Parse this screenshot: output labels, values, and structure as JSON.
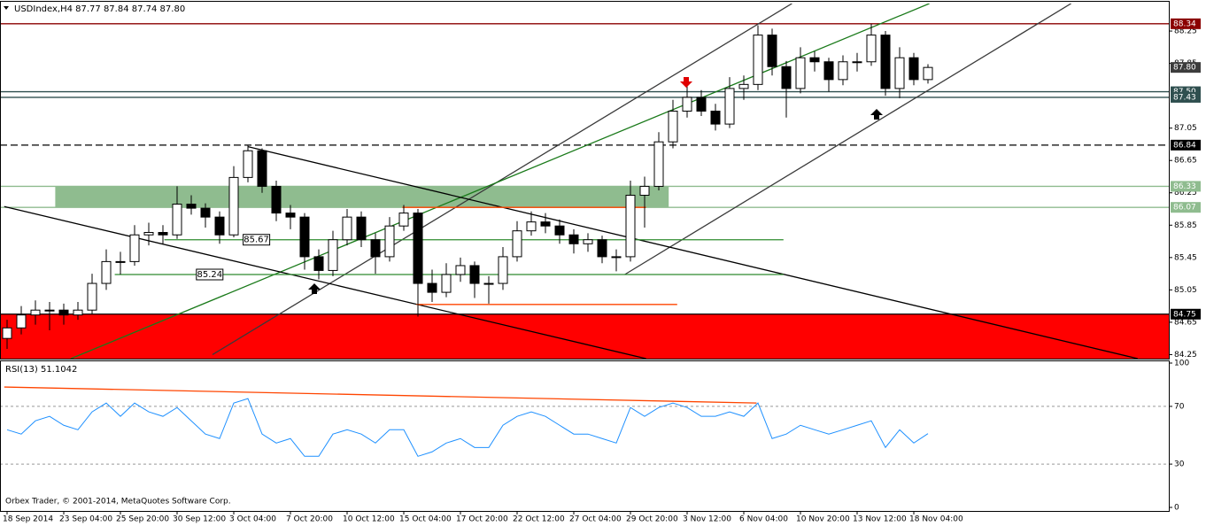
{
  "chart_data": [
    {
      "type": "candlestick",
      "title": "USDIndex,H4  87.77 87.84 87.74 87.80",
      "candles": [
        [
          84.45,
          84.68,
          84.32,
          84.58
        ],
        [
          84.58,
          84.85,
          84.5,
          84.74
        ],
        [
          84.74,
          84.92,
          84.62,
          84.8
        ],
        [
          84.8,
          84.9,
          84.55,
          84.8
        ],
        [
          84.8,
          84.88,
          84.62,
          84.74
        ],
        [
          84.74,
          84.9,
          84.68,
          84.8
        ],
        [
          84.8,
          85.25,
          84.75,
          85.13
        ],
        [
          85.13,
          85.55,
          85.05,
          85.4
        ],
        [
          85.4,
          85.52,
          85.24,
          85.4
        ],
        [
          85.4,
          85.85,
          85.35,
          85.73
        ],
        [
          85.73,
          85.88,
          85.6,
          85.76
        ],
        [
          85.76,
          85.85,
          85.62,
          85.73
        ],
        [
          85.73,
          86.33,
          85.68,
          86.11
        ],
        [
          86.11,
          86.22,
          85.98,
          86.06
        ],
        [
          86.06,
          86.12,
          85.82,
          85.95
        ],
        [
          85.95,
          86.02,
          85.62,
          85.73
        ],
        [
          85.73,
          86.58,
          85.7,
          86.44
        ],
        [
          86.44,
          86.84,
          86.38,
          86.77
        ],
        [
          86.77,
          86.8,
          86.25,
          86.33
        ],
        [
          86.33,
          86.4,
          85.9,
          86.0
        ],
        [
          86.0,
          86.1,
          85.8,
          85.95
        ],
        [
          85.95,
          86.0,
          85.3,
          85.46
        ],
        [
          85.46,
          85.55,
          85.18,
          85.29
        ],
        [
          85.29,
          85.78,
          85.22,
          85.67
        ],
        [
          85.67,
          86.05,
          85.6,
          85.95
        ],
        [
          85.95,
          86.02,
          85.58,
          85.67
        ],
        [
          85.67,
          85.75,
          85.25,
          85.46
        ],
        [
          85.46,
          85.95,
          85.4,
          85.84
        ],
        [
          85.84,
          86.1,
          85.78,
          86.0
        ],
        [
          86.0,
          86.05,
          84.72,
          85.13
        ],
        [
          85.13,
          85.3,
          84.9,
          85.02
        ],
        [
          85.02,
          85.38,
          84.96,
          85.24
        ],
        [
          85.24,
          85.45,
          85.15,
          85.35
        ],
        [
          85.35,
          85.4,
          84.95,
          85.13
        ],
        [
          85.13,
          85.22,
          84.88,
          85.13
        ],
        [
          85.13,
          85.58,
          85.05,
          85.46
        ],
        [
          85.46,
          85.9,
          85.4,
          85.78
        ],
        [
          85.78,
          86.02,
          85.72,
          85.89
        ],
        [
          85.89,
          86.0,
          85.75,
          85.84
        ],
        [
          85.84,
          85.92,
          85.62,
          85.73
        ],
        [
          85.73,
          85.8,
          85.5,
          85.62
        ],
        [
          85.62,
          85.75,
          85.52,
          85.67
        ],
        [
          85.67,
          85.72,
          85.38,
          85.46
        ],
        [
          85.46,
          85.55,
          85.28,
          85.46
        ],
        [
          85.46,
          86.4,
          85.4,
          86.22
        ],
        [
          86.22,
          86.45,
          85.82,
          86.33
        ],
        [
          86.33,
          87.0,
          86.28,
          86.88
        ],
        [
          86.88,
          87.4,
          86.8,
          87.26
        ],
        [
          87.26,
          87.6,
          87.18,
          87.43
        ],
        [
          87.43,
          87.52,
          87.2,
          87.26
        ],
        [
          87.26,
          87.35,
          87.02,
          87.1
        ],
        [
          87.1,
          87.68,
          87.05,
          87.54
        ],
        [
          87.54,
          87.7,
          87.4,
          87.59
        ],
        [
          87.59,
          88.32,
          87.52,
          88.2
        ],
        [
          88.2,
          88.28,
          87.7,
          87.81
        ],
        [
          87.81,
          87.88,
          87.18,
          87.54
        ],
        [
          87.54,
          88.05,
          87.48,
          87.92
        ],
        [
          87.92,
          88.0,
          87.75,
          87.87
        ],
        [
          87.87,
          87.92,
          87.5,
          87.65
        ],
        [
          87.65,
          87.95,
          87.58,
          87.87
        ],
        [
          87.87,
          87.98,
          87.75,
          87.87
        ],
        [
          87.87,
          88.34,
          87.82,
          88.2
        ],
        [
          88.2,
          88.25,
          87.45,
          87.54
        ],
        [
          87.54,
          88.05,
          87.42,
          87.92
        ],
        [
          87.92,
          87.98,
          87.58,
          87.65
        ],
        [
          87.65,
          87.84,
          87.6,
          87.8
        ]
      ],
      "ylim": [
        84.2,
        88.59
      ],
      "yticks": [
        84.25,
        84.65,
        85.05,
        85.45,
        85.85,
        86.25,
        86.65,
        87.05,
        87.85,
        88.25
      ],
      "xticks": [
        {
          "value": 0,
          "label": "18 Sep 2014"
        },
        {
          "value": 4,
          "label": "23 Sep 04:00"
        },
        {
          "value": 8,
          "label": "25 Sep 20:00"
        },
        {
          "value": 12,
          "label": "30 Sep 12:00"
        },
        {
          "value": 16,
          "label": "3 Oct 04:00"
        },
        {
          "value": 20,
          "label": "7 Oct 20:00"
        },
        {
          "value": 24,
          "label": "10 Oct 12:00"
        },
        {
          "value": 28,
          "label": "15 Oct 04:00"
        },
        {
          "value": 32,
          "label": "17 Oct 20:00"
        },
        {
          "value": 36,
          "label": "22 Oct 12:00"
        },
        {
          "value": 40,
          "label": "27 Oct 04:00"
        },
        {
          "value": 44,
          "label": "29 Oct 20:00"
        },
        {
          "value": 48,
          "label": "3 Nov 12:00"
        },
        {
          "value": 52,
          "label": "6 Nov 04:00"
        },
        {
          "value": 56,
          "label": "10 Nov 20:00"
        },
        {
          "value": 60,
          "label": "13 Nov 12:00"
        },
        {
          "value": 64,
          "label": "18 Nov 04:00"
        }
      ],
      "zones": [
        {
          "from": 86.07,
          "to": 86.33,
          "start": 3.4,
          "end": 46.7,
          "color": "#8fbc8f"
        },
        {
          "from": 84.2,
          "to": 84.75,
          "start": -0.5,
          "end": 82,
          "color": "#ff0000"
        }
      ],
      "levels": [
        {
          "value": 88.34,
          "label": "88.34",
          "color": "#8b0000",
          "line": true,
          "dash": false
        },
        {
          "value": 87.8,
          "label": "87.80",
          "color": "#3c3c3c",
          "line": false,
          "dash": false
        },
        {
          "value": 87.5,
          "label": "87.50",
          "color": "#2f4f4f",
          "line": true,
          "dash": false
        },
        {
          "value": 87.43,
          "label": "87.43",
          "color": "#2f4f4f",
          "line": true,
          "dash": false
        },
        {
          "value": 86.84,
          "label": "86.84",
          "color": "#000000",
          "line": true,
          "dash": true
        },
        {
          "value": 86.33,
          "label": "86.33",
          "color": "#8fbc8f",
          "line": true,
          "dash": false
        },
        {
          "value": 86.07,
          "label": "86.07",
          "color": "#8fbc8f",
          "line": true,
          "dash": false
        },
        {
          "value": 84.75,
          "label": "84.75",
          "color": "#000000",
          "line": true,
          "dash": false
        }
      ],
      "segments": [
        {
          "x": [
            14.5,
            55.4
          ],
          "y": [
            84.25,
            88.59
          ],
          "color": "#3a3a3a"
        },
        {
          "x": [
            43.6,
            75.1
          ],
          "y": [
            85.24,
            88.59
          ],
          "color": "#3a3a3a"
        },
        {
          "x": [
            4.5,
            65.1
          ],
          "y": [
            84.2,
            88.59
          ],
          "color": "#1a7a1a"
        },
        {
          "x": [
            -0.2,
            45.1
          ],
          "y": [
            86.08,
            84.2
          ],
          "color": "#000000"
        },
        {
          "x": [
            17,
            79.8
          ],
          "y": [
            86.82,
            84.2
          ],
          "color": "#000000"
        },
        {
          "x": [
            27.9,
            45.1
          ],
          "y": [
            86.07,
            86.07
          ],
          "color": "#ff4500"
        },
        {
          "x": [
            28.9,
            47.3
          ],
          "y": [
            84.87,
            84.87
          ],
          "color": "#ff4500"
        },
        {
          "x": [
            11.1,
            54.8
          ],
          "y": [
            85.67,
            85.67
          ],
          "color": "#2e8b2e"
        },
        {
          "x": [
            7.6,
            54.8
          ],
          "y": [
            85.24,
            85.24
          ],
          "color": "#2e8b2e"
        }
      ],
      "price_labels": [
        {
          "value": 85.67,
          "label": "85.67",
          "at": 17.6
        },
        {
          "value": 85.24,
          "label": "85.24",
          "at": 14.3
        }
      ]
    },
    {
      "type": "line",
      "title": "RSI(13) 51.1042",
      "color": "#1e90ff",
      "values": [
        53.8,
        50.8,
        60,
        63.1,
        56.9,
        53.8,
        66.2,
        72.3,
        63.1,
        72.3,
        66.2,
        63.1,
        69.2,
        60,
        50.8,
        47.7,
        72.3,
        75.4,
        50.8,
        44.6,
        47.7,
        35.4,
        35.4,
        50.8,
        53.8,
        50.8,
        44.6,
        53.8,
        53.8,
        35.4,
        38.5,
        44.6,
        47.7,
        41.5,
        41.5,
        56.9,
        63.1,
        66.2,
        63.1,
        56.9,
        50.8,
        50.8,
        47.7,
        44.6,
        69.2,
        63.1,
        69.2,
        72.3,
        69.2,
        63.1,
        63.1,
        66.2,
        63.1,
        72.3,
        47.7,
        50.8,
        56.9,
        53.8,
        50.8,
        53.8,
        56.9,
        60,
        41.5,
        53.8,
        44.6,
        51.1
      ],
      "ylim": [
        0,
        100
      ],
      "yticks": [
        0,
        30,
        70,
        100
      ],
      "levels": [
        30,
        70
      ],
      "segments": [
        {
          "x": [
            -0.2,
            52.9
          ],
          "y": [
            83.4,
            72.3
          ],
          "color": "#ff4500"
        }
      ]
    }
  ],
  "footer": "Orbex Trader, © 2001-2014, MetaQuotes Software Corp."
}
